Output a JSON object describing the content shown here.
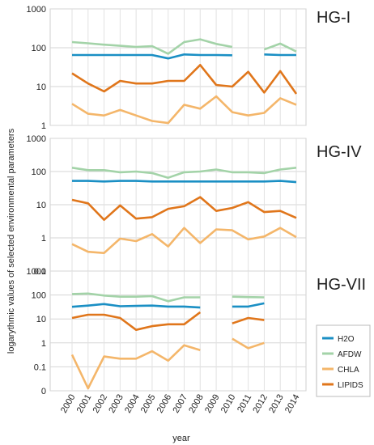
{
  "chart_data": {
    "type": "line",
    "xlabel": "year",
    "ylabel": "logarythmic values of selected environmental parameters",
    "x": [
      "2000",
      "2001",
      "2002",
      "2003",
      "2004",
      "2005",
      "2006",
      "2007",
      "2008",
      "2009",
      "2010",
      "2011",
      "2012",
      "2013",
      "2014"
    ],
    "y_scale": "log",
    "grid": true,
    "legend": {
      "placement": "right",
      "entries": [
        {
          "name": "H2O",
          "color": "#1a8fc4"
        },
        {
          "name": "AFDW",
          "color": "#a3d3a8"
        },
        {
          "name": "CHLA",
          "color": "#f4b66a"
        },
        {
          "name": "LIPIDS",
          "color": "#e0761b"
        }
      ]
    },
    "panels": [
      {
        "title": "HG-I",
        "ylim": [
          1,
          1000
        ],
        "yticks": [
          1,
          10,
          100,
          1000
        ],
        "ytick_labels": [
          "1",
          "10",
          "100",
          "1000"
        ],
        "series": [
          {
            "name": "H2O",
            "values": [
              65,
              65,
              65,
              65,
              65,
              65,
              53,
              67,
              65,
              65,
              64,
              null,
              67,
              65,
              65
            ]
          },
          {
            "name": "AFDW",
            "values": [
              140,
              130,
              120,
              112,
              105,
              110,
              70,
              140,
              165,
              125,
              105,
              null,
              90,
              128,
              80
            ]
          },
          {
            "name": "CHLA",
            "values": [
              3.6,
              2.0,
              1.8,
              2.5,
              1.8,
              1.3,
              1.15,
              3.4,
              2.7,
              5.6,
              2.2,
              1.8,
              2.1,
              5.0,
              3.4
            ]
          },
          {
            "name": "LIPIDS",
            "values": [
              22,
              12,
              7.5,
              14,
              12,
              12,
              14,
              14,
              36,
              11,
              10,
              24,
              7,
              25,
              6.5
            ]
          }
        ]
      },
      {
        "title": "HG-IV",
        "ylim": [
          0.1,
          1000
        ],
        "yticks": [
          0.1,
          1,
          10,
          100,
          1000
        ],
        "ytick_labels": [
          "0.1",
          "1",
          "10",
          "100",
          "1000"
        ],
        "series": [
          {
            "name": "H2O",
            "values": [
              52,
              52,
              50,
              52,
              52,
              50,
              50,
              50,
              50,
              50,
              50,
              50,
              50,
              52,
              48
            ]
          },
          {
            "name": "AFDW",
            "values": [
              130,
              110,
              110,
              95,
              100,
              90,
              65,
              95,
              100,
              115,
              95,
              95,
              90,
              115,
              130
            ]
          },
          {
            "name": "CHLA",
            "values": [
              0.65,
              0.38,
              0.35,
              0.95,
              0.8,
              1.3,
              0.55,
              2.0,
              0.7,
              1.8,
              1.7,
              0.9,
              1.1,
              2.0,
              1.05
            ]
          },
          {
            "name": "LIPIDS",
            "values": [
              14,
              11,
              3.5,
              9.5,
              3.8,
              4.2,
              7.5,
              9,
              17,
              6.5,
              8,
              12,
              6,
              6.5,
              4
            ]
          }
        ]
      },
      {
        "title": "HG-VII",
        "ylim": [
          0,
          1000
        ],
        "yticks": [
          0,
          0.1,
          1,
          10,
          100,
          1000
        ],
        "ytick_labels": [
          "0",
          "0.1",
          "1",
          "10",
          "100",
          "1000"
        ],
        "series": [
          {
            "name": "H2O",
            "values": [
              32,
              36,
              42,
              34,
              35,
              36,
              33,
              33,
              30,
              null,
              33,
              33,
              45,
              null,
              null
            ]
          },
          {
            "name": "AFDW",
            "values": [
              110,
              115,
              95,
              85,
              85,
              90,
              55,
              80,
              80,
              null,
              85,
              82,
              80,
              null,
              null
            ]
          },
          {
            "name": "CHLA",
            "values": [
              0.32,
              0.01,
              0.27,
              0.22,
              0.22,
              0.45,
              0.18,
              0.8,
              0.5,
              null,
              1.5,
              0.6,
              1.0,
              null,
              null
            ]
          },
          {
            "name": "LIPIDS",
            "values": [
              11,
              15,
              15,
              11,
              3.5,
              5,
              6,
              6,
              19,
              null,
              6.5,
              11,
              9,
              null,
              null
            ]
          }
        ]
      }
    ]
  }
}
